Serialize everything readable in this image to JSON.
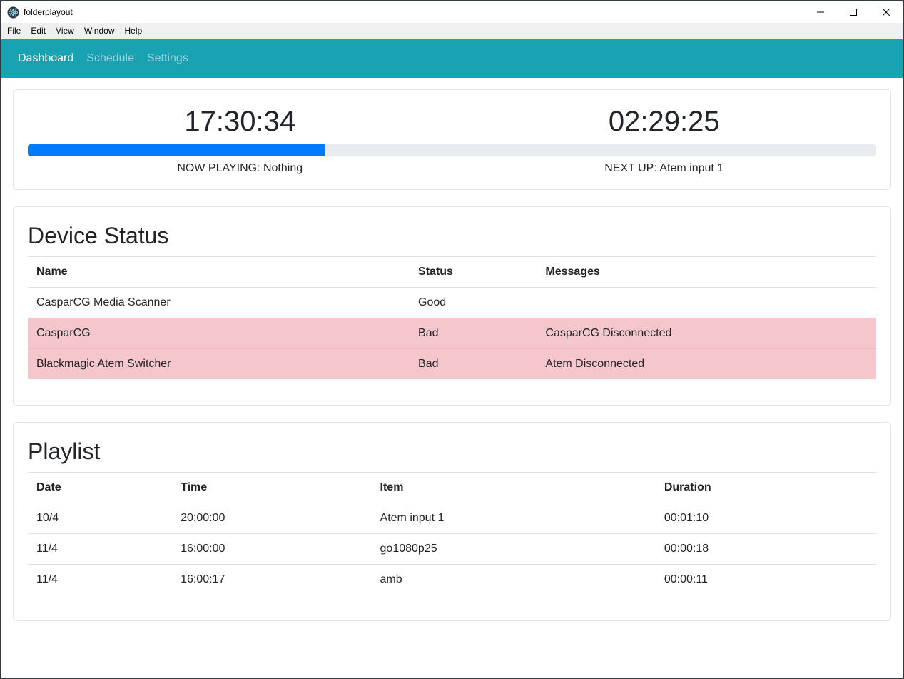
{
  "window": {
    "title": "folderplayout",
    "controls": [
      "minimize",
      "maximize",
      "close"
    ]
  },
  "menu": {
    "items": [
      "File",
      "Edit",
      "View",
      "Window",
      "Help"
    ]
  },
  "nav": {
    "items": [
      {
        "label": "Dashboard",
        "active": true
      },
      {
        "label": "Schedule",
        "active": false
      },
      {
        "label": "Settings",
        "active": false
      }
    ]
  },
  "player": {
    "current_time": "17:30:34",
    "countdown": "02:29:25",
    "progress_percent": 35,
    "now_playing_label": "NOW PLAYING: Nothing",
    "next_up_label": "NEXT UP: Atem input 1"
  },
  "device_status": {
    "title": "Device Status",
    "columns": [
      "Name",
      "Status",
      "Messages"
    ],
    "rows": [
      {
        "name": "CasparCG Media Scanner",
        "status": "Good",
        "messages": "",
        "bad": false
      },
      {
        "name": "CasparCG",
        "status": "Bad",
        "messages": "CasparCG Disconnected",
        "bad": true
      },
      {
        "name": "Blackmagic Atem Switcher",
        "status": "Bad",
        "messages": "Atem Disconnected",
        "bad": true
      }
    ]
  },
  "playlist": {
    "title": "Playlist",
    "columns": [
      "Date",
      "Time",
      "Item",
      "Duration"
    ],
    "rows": [
      {
        "date": "10/4",
        "time": "20:00:00",
        "item": "Atem input 1",
        "duration": "00:01:10"
      },
      {
        "date": "11/4",
        "time": "16:00:00",
        "item": "go1080p25",
        "duration": "00:00:18"
      },
      {
        "date": "11/4",
        "time": "16:00:17",
        "item": "amb",
        "duration": "00:00:11"
      }
    ]
  },
  "colors": {
    "nav_bg": "#18a2b2",
    "progress_fill": "#007bff",
    "progress_track": "#e9ecef",
    "danger_row_bg": "#f5c6cb",
    "text": "#212529"
  }
}
